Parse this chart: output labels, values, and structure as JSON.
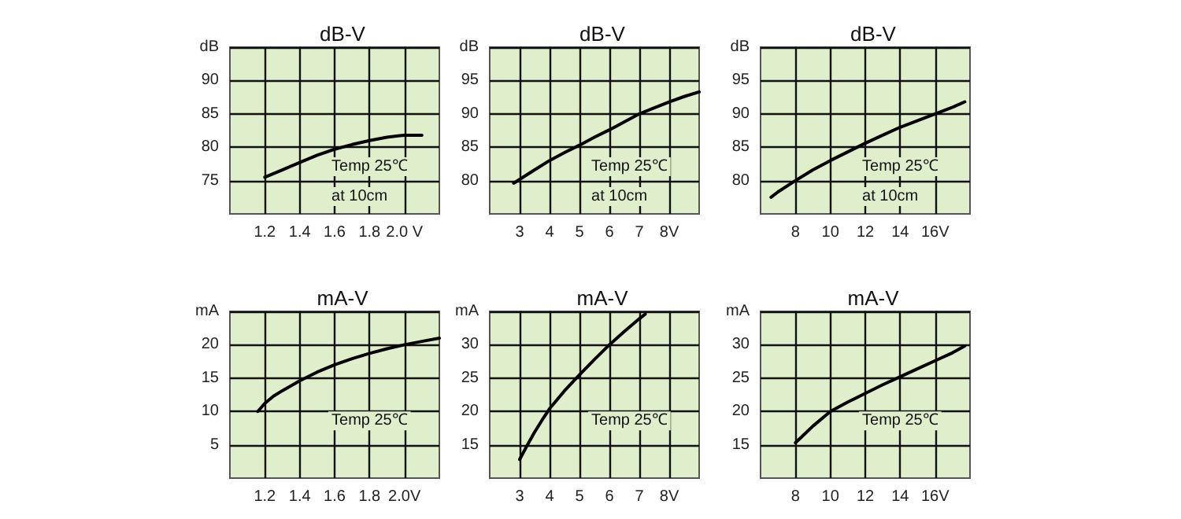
{
  "chart_data": [
    {
      "type": "line",
      "title": "dB-V",
      "x": [
        1.2,
        1.3,
        1.4,
        1.5,
        1.6,
        1.7,
        1.8,
        1.9,
        2.0,
        2.1
      ],
      "series": [
        {
          "color": "#000000",
          "values": [
            75.5,
            76.6,
            77.7,
            78.8,
            79.7,
            80.4,
            81.0,
            81.5,
            81.8,
            81.8
          ]
        }
      ],
      "xlim": [
        1.0,
        2.2
      ],
      "xticks": [
        1.2,
        1.4,
        1.6,
        1.8,
        {
          "value": 2.0,
          "label": "2.0 V"
        }
      ],
      "ylim": [
        70,
        95
      ],
      "yticks": [
        75,
        80,
        85,
        90,
        {
          "value": 95,
          "label": "dB"
        }
      ],
      "grid": true,
      "marker": "none",
      "annotations": [
        "Temp 25℃",
        "at 10cm"
      ]
    },
    {
      "type": "line",
      "title": "dB-V",
      "x": [
        2.8,
        3.5,
        4,
        4.5,
        5,
        5.5,
        6,
        6.5,
        7,
        7.5,
        8,
        8.5,
        9
      ],
      "series": [
        {
          "color": "#000000",
          "values": [
            79.6,
            81.6,
            83,
            84.2,
            85.3,
            86.5,
            87.6,
            88.8,
            90,
            90.9,
            91.8,
            92.6,
            93.3
          ]
        }
      ],
      "xlim": [
        2,
        9
      ],
      "xticks": [
        3,
        4,
        5,
        6,
        7,
        {
          "value": 8,
          "label": "8V"
        }
      ],
      "ylim": [
        75,
        100
      ],
      "yticks": [
        80,
        85,
        90,
        95,
        {
          "value": 100,
          "label": "dB"
        }
      ],
      "grid": true,
      "marker": "none",
      "annotations": [
        "Temp 25℃",
        "at 10cm"
      ]
    },
    {
      "type": "line",
      "title": "dB-V",
      "x": [
        6.6,
        7,
        8,
        9,
        10,
        11,
        12,
        13,
        14,
        15,
        16,
        17,
        17.7
      ],
      "series": [
        {
          "color": "#000000",
          "values": [
            77.5,
            78.3,
            80,
            81.6,
            83,
            84.3,
            85.6,
            86.8,
            88,
            89,
            90,
            91,
            91.8
          ]
        }
      ],
      "xlim": [
        6,
        18
      ],
      "xticks": [
        8,
        10,
        12,
        14,
        {
          "value": 16,
          "label": "16V"
        }
      ],
      "ylim": [
        75,
        100
      ],
      "yticks": [
        80,
        85,
        90,
        95,
        {
          "value": 100,
          "label": "dB"
        }
      ],
      "grid": true,
      "marker": "none",
      "annotations": [
        "Temp 25℃",
        "at 10cm"
      ]
    },
    {
      "type": "line",
      "title": "mA-V",
      "x": [
        1.16,
        1.2,
        1.25,
        1.3,
        1.4,
        1.5,
        1.6,
        1.7,
        1.8,
        1.9,
        2.0,
        2.1,
        2.2
      ],
      "series": [
        {
          "color": "#000000",
          "values": [
            10,
            11.2,
            12.3,
            13.1,
            14.6,
            15.9,
            17,
            17.9,
            18.7,
            19.4,
            20,
            20.5,
            21
          ]
        }
      ],
      "xlim": [
        1.0,
        2.2
      ],
      "xticks": [
        1.2,
        1.4,
        1.6,
        1.8,
        {
          "value": 2.0,
          "label": "2.0V"
        }
      ],
      "ylim": [
        0,
        25
      ],
      "yticks": [
        5,
        10,
        15,
        20,
        {
          "value": 25,
          "label": "mA"
        }
      ],
      "grid": true,
      "marker": "none",
      "annotations": [
        "Temp 25℃"
      ]
    },
    {
      "type": "line",
      "title": "mA-V",
      "x": [
        3,
        3.25,
        3.5,
        3.75,
        4,
        4.5,
        5,
        5.5,
        6,
        6.5,
        7,
        7.2
      ],
      "series": [
        {
          "color": "#000000",
          "values": [
            12.8,
            14.9,
            16.9,
            18.7,
            20.4,
            23.1,
            25.5,
            27.8,
            30,
            32,
            33.9,
            34.6
          ]
        }
      ],
      "xlim": [
        2,
        9
      ],
      "xticks": [
        3,
        4,
        5,
        6,
        7,
        {
          "value": 8,
          "label": "8V"
        }
      ],
      "ylim": [
        10,
        35
      ],
      "yticks": [
        15,
        20,
        25,
        30,
        {
          "value": 35,
          "label": "mA"
        }
      ],
      "grid": true,
      "marker": "none",
      "annotations": [
        "Temp 25℃"
      ]
    },
    {
      "type": "line",
      "title": "mA-V",
      "x": [
        8,
        9,
        10,
        11,
        12,
        13,
        14,
        15,
        16,
        17,
        17.7
      ],
      "series": [
        {
          "color": "#000000",
          "values": [
            15.3,
            17.8,
            20,
            21.4,
            22.7,
            24,
            25.2,
            26.4,
            27.6,
            28.8,
            29.8
          ]
        }
      ],
      "xlim": [
        6,
        18
      ],
      "xticks": [
        8,
        10,
        12,
        14,
        {
          "value": 16,
          "label": "16V"
        }
      ],
      "ylim": [
        10,
        35
      ],
      "yticks": [
        15,
        20,
        25,
        30,
        {
          "value": 35,
          "label": "mA"
        }
      ],
      "grid": true,
      "marker": "none",
      "annotations": [
        "Temp 25℃"
      ]
    }
  ]
}
